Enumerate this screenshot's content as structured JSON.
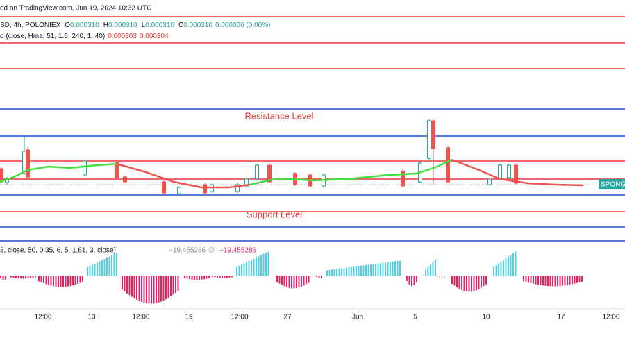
{
  "header": {
    "source": "ed on TradingView.com, Jun 19, 2024 10:32 UTC",
    "symbol": "SD, 4h, POLONIEX",
    "ohlc": [
      {
        "label": "O",
        "value": "0.000310"
      },
      {
        "label": "H",
        "value": "0.000310"
      },
      {
        "label": "L",
        "value": "0.000310"
      },
      {
        "label": "C",
        "value": "0.000310"
      }
    ],
    "change": "0.000000 (0.00%)"
  },
  "indicator": {
    "text": "o (close, Hma, 51, 1.5, 240, 1, 40)",
    "values": [
      "0.000303",
      "0.000304"
    ]
  },
  "annotations": {
    "resistance": "Resistance Level",
    "support": "Support Level"
  },
  "price_tag": "SPONG",
  "oscillator": {
    "params": "3, close, 50, 0.35, 6, 5, 1.61, 3, close)",
    "value1": "−19.455286",
    "symbol": "∅",
    "value2": "−19.455286"
  },
  "x_axis": [
    "12:00",
    "13",
    "12:00",
    "19",
    "12:00",
    "27",
    "Jun",
    "5",
    "10",
    "17",
    "12:00"
  ]
}
